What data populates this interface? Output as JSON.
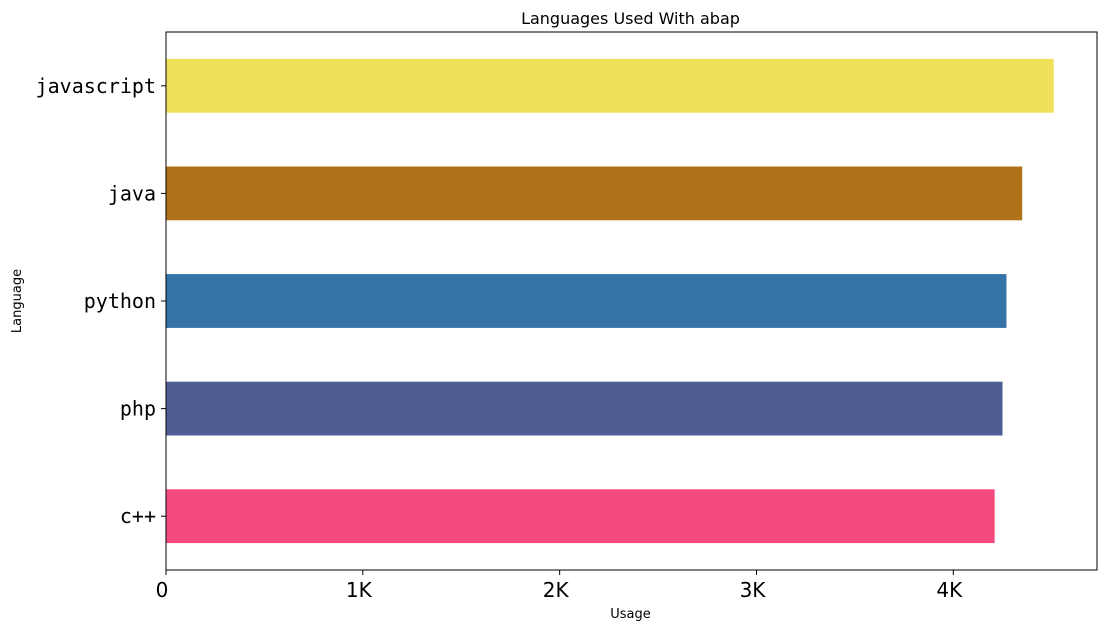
{
  "chart_data": {
    "type": "bar",
    "orientation": "horizontal",
    "title": "Languages Used With abap",
    "xlabel": "Usage",
    "ylabel": "Language",
    "categories": [
      "javascript",
      "java",
      "python",
      "php",
      "c++"
    ],
    "values": [
      4510,
      4350,
      4270,
      4250,
      4210
    ],
    "colors": [
      "#f0e05a",
      "#b07219",
      "#3572a5",
      "#4f5d95",
      "#f34b7d"
    ],
    "xlim": [
      0,
      4730
    ],
    "xticks": [
      0,
      1000,
      2000,
      3000,
      4000
    ],
    "xtick_labels": [
      "0",
      "1K",
      "2K",
      "3K",
      "4K"
    ],
    "grid": false,
    "legend": "none"
  }
}
